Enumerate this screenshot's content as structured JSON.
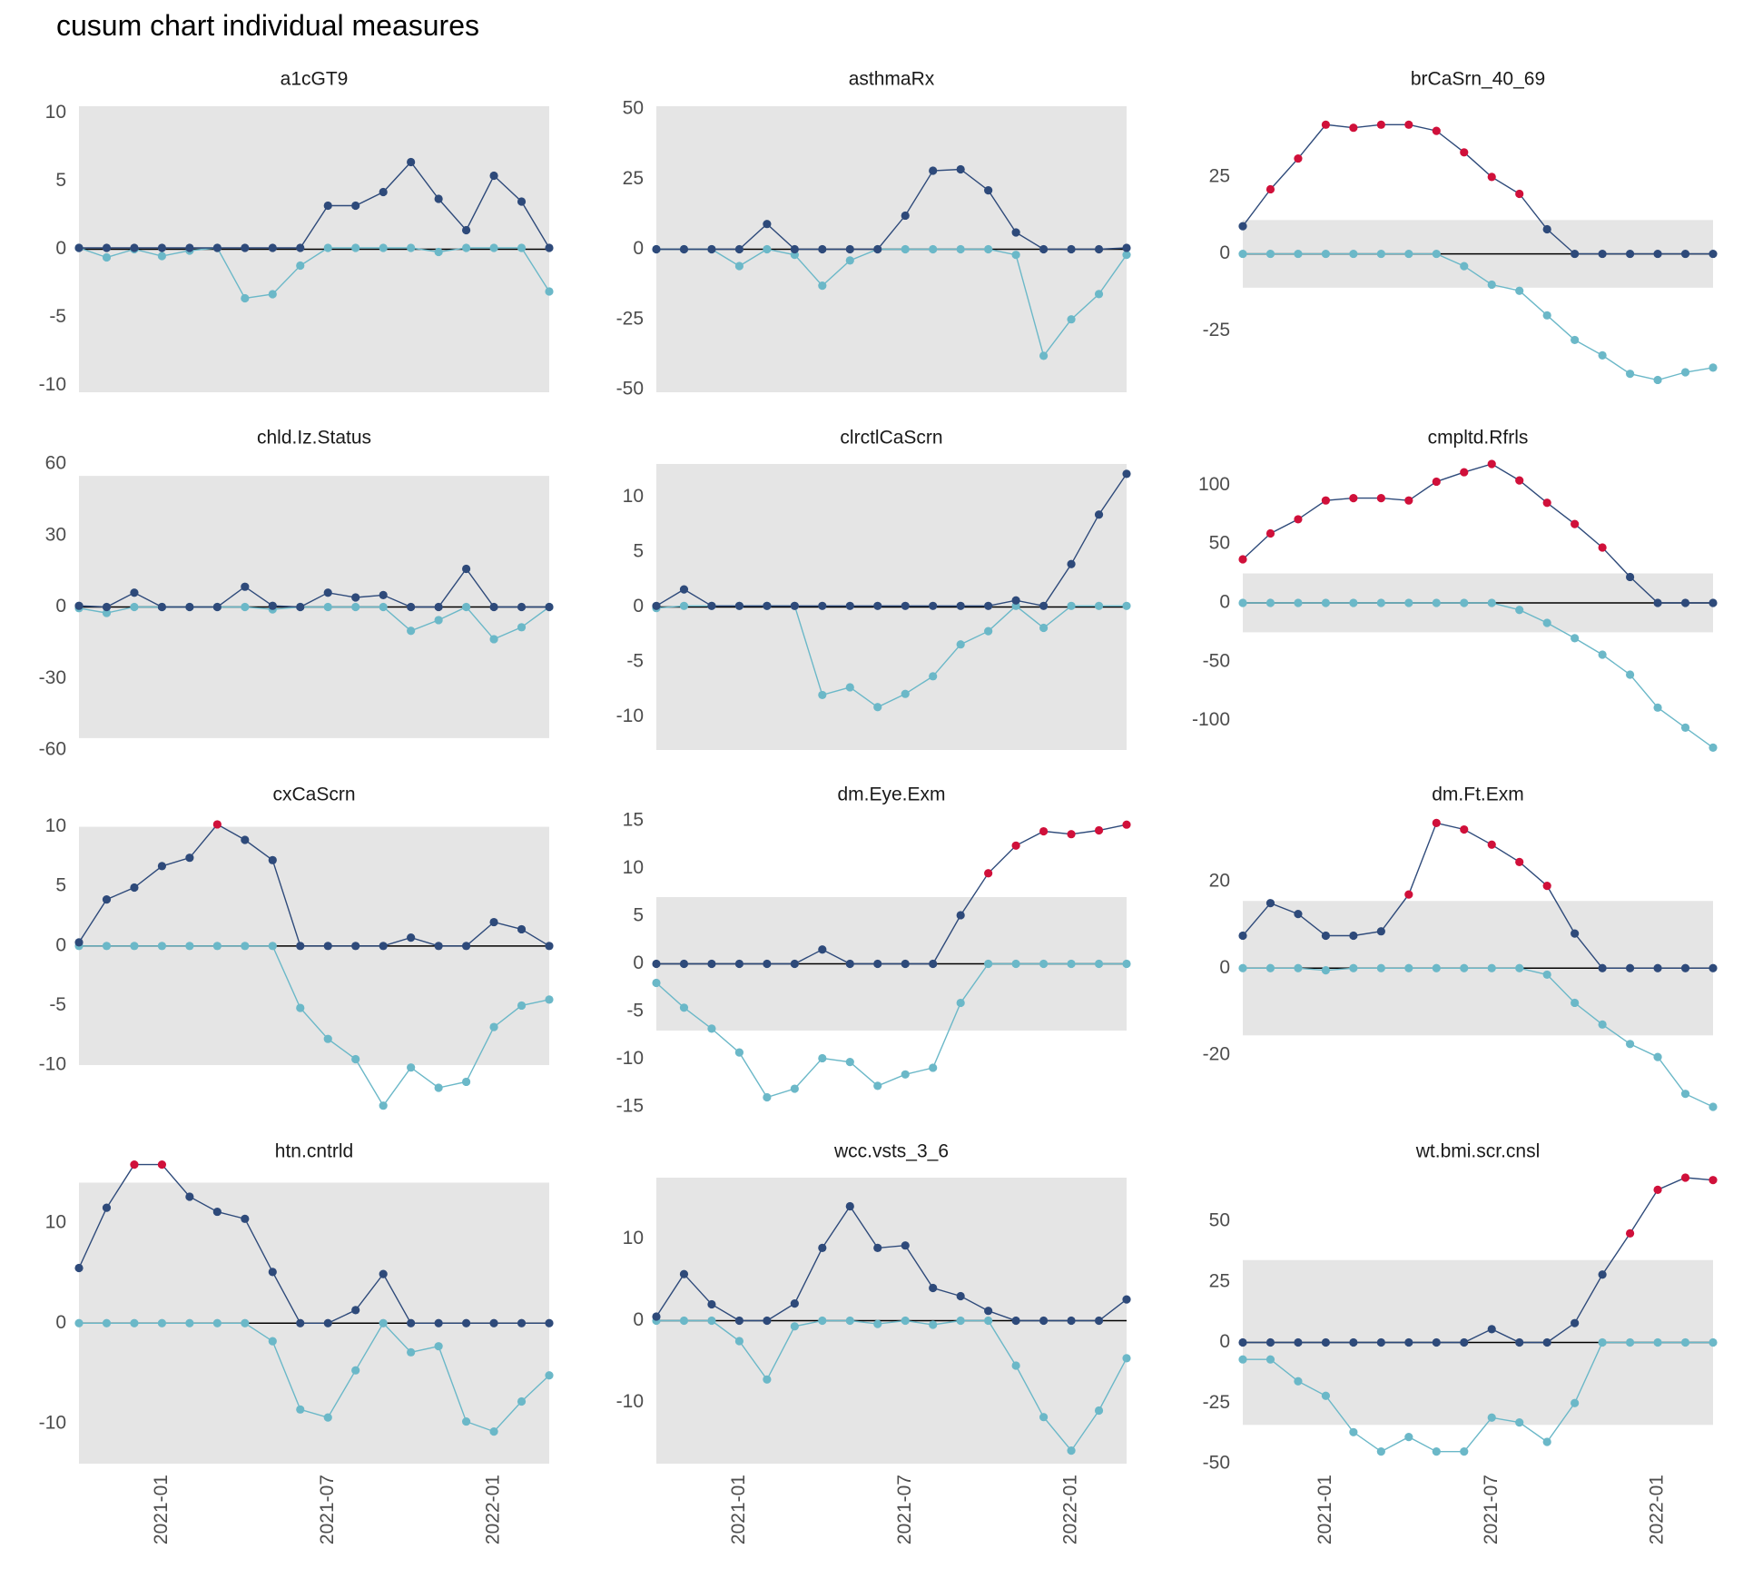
{
  "title": "cusum chart  individual measures",
  "chart_data": {
    "type": "line",
    "x_ticks": [
      "2021-01",
      "2021-07",
      "2022-01"
    ],
    "x": [
      "2020-10",
      "2020-11",
      "2020-12",
      "2021-01",
      "2021-02",
      "2021-03",
      "2021-04",
      "2021-05",
      "2021-06",
      "2021-07",
      "2021-08",
      "2021-09",
      "2021-10",
      "2021-11",
      "2021-12",
      "2022-01",
      "2022-02",
      "2022-03"
    ],
    "colors": {
      "upper": "#2e4a7a",
      "lower": "#6bb8c8",
      "signal": "#d0103a",
      "band": "#e5e5e5",
      "zero": "#000000"
    },
    "panels": [
      {
        "title": "a1cGT9",
        "ylim": [
          -10.5,
          10.5
        ],
        "yticks": [
          10,
          5,
          0,
          -5,
          -10
        ],
        "band": 10.5,
        "upper": [
          0.1,
          0.1,
          0.1,
          0.1,
          0.1,
          0.1,
          0.1,
          0.1,
          0.1,
          3.2,
          3.2,
          4.2,
          6.4,
          3.7,
          1.4,
          5.4,
          3.5,
          0.1
        ],
        "lower": [
          0.1,
          -0.6,
          0,
          -0.5,
          -0.1,
          0.1,
          -3.6,
          -3.3,
          -1.2,
          0.1,
          0.1,
          0.1,
          0.1,
          -0.2,
          0.1,
          0.1,
          0.1,
          -3.1
        ]
      },
      {
        "title": "asthmaRx",
        "ylim": [
          -51,
          51
        ],
        "yticks": [
          50,
          25,
          0,
          -25,
          -50
        ],
        "band": 51,
        "upper": [
          0,
          0,
          0,
          0,
          9,
          0,
          0,
          0,
          0,
          12,
          28,
          28.5,
          21,
          6,
          0,
          0,
          0,
          0.5
        ],
        "lower": [
          0,
          0,
          0,
          -6,
          0,
          -2,
          -13,
          -4,
          0,
          0,
          0,
          0,
          0,
          -2,
          -38,
          -25,
          -16,
          -2
        ]
      },
      {
        "title": "brCaSrn_40_69",
        "ylim": [
          -45,
          48
        ],
        "yticks": [
          25,
          0,
          -25
        ],
        "band": 11,
        "upper": [
          9,
          21,
          31,
          42,
          41,
          42,
          42,
          40,
          33,
          25,
          19.5,
          8,
          0,
          0,
          0,
          0,
          0,
          0
        ],
        "lower": [
          0,
          0,
          0,
          0,
          0,
          0,
          0,
          0,
          -4,
          -10,
          -12,
          -20,
          -28,
          -33,
          -39,
          -41,
          -38.5,
          -37
        ],
        "signal": [
          false,
          true,
          true,
          true,
          true,
          true,
          true,
          true,
          true,
          true,
          true,
          false,
          false,
          false,
          false,
          false,
          false,
          false
        ]
      },
      {
        "title": "chld.Iz.Status",
        "ylim": [
          -60,
          60
        ],
        "yticks": [
          60,
          30,
          0,
          -30,
          -60
        ],
        "band": 55,
        "upper": [
          0.5,
          0,
          6,
          0,
          0,
          0,
          8.5,
          0.5,
          0,
          6,
          4,
          5,
          0,
          0,
          16,
          0,
          0,
          0
        ],
        "lower": [
          -0.5,
          -2.5,
          0,
          0,
          0,
          0,
          0,
          -1,
          0,
          0,
          0,
          0,
          -10,
          -5.5,
          0,
          -13.5,
          -8.5,
          0
        ]
      },
      {
        "title": "clrctlCaScrn",
        "ylim": [
          -13,
          13
        ],
        "yticks": [
          10,
          5,
          0,
          -5,
          -10
        ],
        "band": 13,
        "upper": [
          0.1,
          1.6,
          0.1,
          0.1,
          0.1,
          0.1,
          0.1,
          0.1,
          0.1,
          0.1,
          0.1,
          0.1,
          0.1,
          0.6,
          0.1,
          3.9,
          8.4,
          12.1
        ],
        "lower": [
          -0.1,
          0.1,
          0.1,
          0.1,
          0.1,
          0.1,
          -8,
          -7.3,
          -9.1,
          -7.9,
          -6.3,
          -3.4,
          -2.2,
          0.1,
          -1.9,
          0.1,
          0.1,
          0.1
        ]
      },
      {
        "title": "cmpltd.Rfrls",
        "ylim": [
          -125,
          118
        ],
        "yticks": [
          100,
          50,
          0,
          -50,
          -100
        ],
        "band": 25,
        "upper": [
          37,
          59,
          71,
          87,
          89,
          89,
          87,
          103,
          111,
          118,
          104,
          85,
          67,
          47,
          22,
          0,
          0,
          0
        ],
        "lower": [
          0,
          0,
          0,
          0,
          0,
          0,
          0,
          0,
          0,
          0,
          -6,
          -17,
          -30,
          -44,
          -61,
          -89,
          -106,
          -123
        ],
        "signal": [
          true,
          true,
          true,
          true,
          true,
          true,
          true,
          true,
          true,
          true,
          true,
          true,
          true,
          true,
          false,
          false,
          false,
          false
        ]
      },
      {
        "title": "cxCaScrn",
        "ylim": [
          -13.5,
          10.5
        ],
        "yticks": [
          10,
          5,
          0,
          -5,
          -10
        ],
        "band": 10,
        "upper": [
          0.3,
          3.9,
          4.9,
          6.7,
          7.4,
          10.2,
          8.9,
          7.2,
          0,
          0,
          0,
          0,
          0.7,
          0,
          0,
          2,
          1.4,
          0
        ],
        "lower": [
          0,
          0,
          0,
          0,
          0,
          0,
          0,
          0,
          -5.2,
          -7.8,
          -9.5,
          -13.4,
          -10.2,
          -11.9,
          -11.4,
          -6.8,
          -5,
          -4.5
        ],
        "signal": [
          false,
          false,
          false,
          false,
          false,
          true,
          false,
          false,
          false,
          false,
          false,
          false,
          false,
          false,
          false,
          false,
          false,
          false
        ]
      },
      {
        "title": "dm.Eye.Exm",
        "ylim": [
          -15,
          15
        ],
        "yticks": [
          15,
          10,
          5,
          0,
          -5,
          -10,
          -15
        ],
        "band": 7,
        "upper": [
          0,
          0,
          0,
          0,
          0,
          0,
          1.5,
          0,
          0,
          0,
          0,
          5.1,
          9.5,
          12.4,
          13.9,
          13.6,
          14,
          14.6
        ],
        "lower": [
          -2,
          -4.6,
          -6.8,
          -9.3,
          -14,
          -13.1,
          -9.9,
          -10.3,
          -12.8,
          -11.6,
          -10.9,
          -4.1,
          0,
          0,
          0,
          0,
          0,
          0
        ],
        "signal": [
          false,
          false,
          false,
          false,
          false,
          false,
          false,
          false,
          false,
          false,
          false,
          false,
          true,
          true,
          true,
          true,
          true,
          true
        ]
      },
      {
        "title": "dm.Ft.Exm",
        "ylim": [
          -32,
          34
        ],
        "yticks": [
          20,
          0,
          -20
        ],
        "band": 15.5,
        "upper": [
          7.5,
          15,
          12.5,
          7.5,
          7.5,
          8.5,
          17,
          33.5,
          32,
          28.5,
          24.5,
          19,
          8,
          0,
          0,
          0,
          0,
          0
        ],
        "lower": [
          0,
          0,
          0,
          -0.5,
          0,
          0,
          0,
          0,
          0,
          0,
          0,
          -1.5,
          -8,
          -13,
          -17.5,
          -20.5,
          -29,
          -32
        ],
        "signal": [
          false,
          false,
          false,
          false,
          false,
          false,
          true,
          true,
          true,
          true,
          true,
          true,
          false,
          false,
          false,
          false,
          false,
          false
        ]
      },
      {
        "title": "htn.cntrld",
        "ylim": [
          -14,
          14.5
        ],
        "yticks": [
          10,
          0,
          -10
        ],
        "band": 14,
        "upper": [
          5.5,
          11.5,
          15.8,
          15.8,
          12.6,
          11.1,
          10.4,
          5.1,
          0,
          0,
          1.3,
          4.9,
          0,
          0,
          0,
          0,
          0,
          0
        ],
        "lower": [
          0,
          0,
          0,
          0,
          0,
          0,
          0,
          -1.8,
          -8.6,
          -9.4,
          -4.7,
          0,
          -2.9,
          -2.3,
          -9.8,
          -10.8,
          -7.8,
          -5.2
        ],
        "signal": [
          false,
          false,
          true,
          true,
          false,
          false,
          false,
          false,
          false,
          false,
          false,
          false,
          false,
          false,
          false,
          false,
          false,
          false
        ]
      },
      {
        "title": "wcc.vsts_3_6",
        "ylim": [
          -17.5,
          17.5
        ],
        "yticks": [
          10,
          0,
          -10
        ],
        "band": 17.5,
        "upper": [
          0.5,
          5.7,
          2,
          0,
          0,
          2.1,
          8.9,
          14,
          8.9,
          9.2,
          4,
          3,
          1.2,
          0,
          0,
          0,
          0,
          2.6
        ],
        "lower": [
          0,
          0,
          0,
          -2.5,
          -7.2,
          -0.7,
          0,
          0,
          -0.4,
          0,
          -0.5,
          0,
          0,
          -5.5,
          -11.8,
          -15.9,
          -11,
          -4.6
        ]
      },
      {
        "title": "wt.bmi.scr.cnsl",
        "ylim": [
          -50,
          68
        ],
        "yticks": [
          50,
          25,
          0,
          -25,
          -50
        ],
        "band": 34,
        "upper": [
          0,
          0,
          0,
          0,
          0,
          0,
          0,
          0,
          0,
          5.5,
          0,
          0,
          8,
          28,
          45,
          63,
          68,
          67
        ],
        "lower": [
          -7,
          -7,
          -16,
          -22,
          -37,
          -45,
          -39,
          -45,
          -45,
          -31,
          -33,
          -41,
          -25,
          0,
          0,
          0,
          0,
          0
        ],
        "signal": [
          false,
          false,
          false,
          false,
          false,
          false,
          false,
          false,
          false,
          false,
          false,
          false,
          false,
          false,
          true,
          true,
          true,
          true
        ]
      }
    ]
  }
}
